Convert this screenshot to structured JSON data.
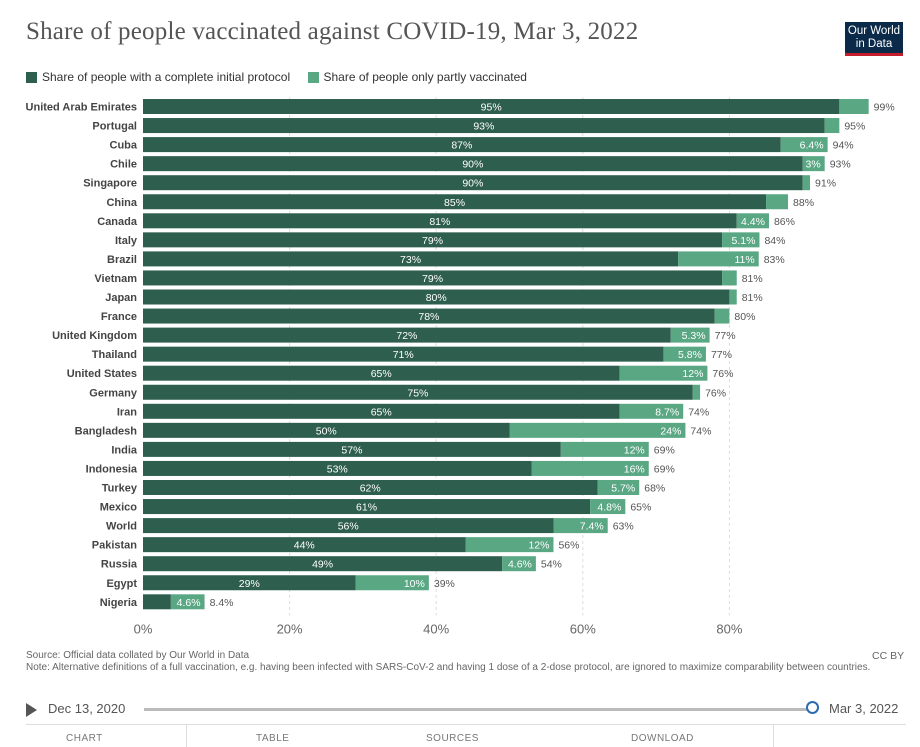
{
  "title": "Share of people vaccinated against COVID-19, Mar 3, 2022",
  "logo": {
    "line1": "Our World",
    "line2": "in Data"
  },
  "colors": {
    "complete": "#2e5e4e",
    "partial": "#5aa784"
  },
  "chart_data": {
    "type": "bar",
    "orientation": "horizontal",
    "stacked": true,
    "title": "Share of people vaccinated against COVID-19, Mar 3, 2022",
    "categories": [
      "United Arab Emirates",
      "Portugal",
      "Cuba",
      "Chile",
      "Singapore",
      "China",
      "Canada",
      "Italy",
      "Brazil",
      "Vietnam",
      "Japan",
      "France",
      "United Kingdom",
      "Thailand",
      "United States",
      "Germany",
      "Iran",
      "Bangladesh",
      "India",
      "Indonesia",
      "Turkey",
      "Mexico",
      "World",
      "Pakistan",
      "Russia",
      "Egypt",
      "Nigeria"
    ],
    "series": [
      {
        "name": "Share of people with a complete initial protocol",
        "values": [
          95,
          93,
          87,
          90,
          90,
          85,
          81,
          79,
          73,
          79,
          80,
          78,
          72,
          71,
          65,
          75,
          65,
          50,
          57,
          53,
          62,
          61,
          56,
          44,
          49,
          29,
          3.8
        ],
        "labels": [
          "95%",
          "93%",
          "87%",
          "90%",
          "90%",
          "85%",
          "81%",
          "79%",
          "73%",
          "79%",
          "80%",
          "78%",
          "72%",
          "71%",
          "65%",
          "75%",
          "65%",
          "50%",
          "57%",
          "53%",
          "62%",
          "61%",
          "56%",
          "44%",
          "49%",
          "29%",
          ""
        ]
      },
      {
        "name": "Share of people only partly vaccinated",
        "values": [
          4,
          2,
          6.4,
          3,
          1,
          3,
          4.4,
          5.1,
          11,
          2,
          1,
          2,
          5.3,
          5.8,
          12,
          1,
          8.7,
          24,
          12,
          16,
          5.7,
          4.8,
          7.4,
          12,
          4.6,
          10,
          4.6
        ],
        "labels": [
          "",
          "",
          "6.4%",
          "3%",
          "",
          "",
          "4.4%",
          "5.1%",
          "11%",
          "",
          "",
          "",
          "5.3%",
          "5.8%",
          "12%",
          "",
          "8.7%",
          "24%",
          "12%",
          "16%",
          "5.7%",
          "4.8%",
          "7.4%",
          "12%",
          "4.6%",
          "10%",
          "4.6%"
        ]
      }
    ],
    "totals": [
      "99%",
      "95%",
      "94%",
      "93%",
      "91%",
      "88%",
      "86%",
      "84%",
      "83%",
      "81%",
      "81%",
      "80%",
      "77%",
      "77%",
      "76%",
      "76%",
      "74%",
      "74%",
      "69%",
      "69%",
      "68%",
      "65%",
      "63%",
      "56%",
      "54%",
      "39%",
      "8.4%"
    ],
    "xlim": [
      0,
      100
    ],
    "xticks": [
      0,
      20,
      40,
      60,
      80
    ],
    "xtick_labels": [
      "0%",
      "20%",
      "40%",
      "60%",
      "80%"
    ],
    "grid": "vertical-dashed",
    "legend": "top-left"
  },
  "footer": {
    "source": "Source: Official data collated by Our World in Data",
    "note": "Note: Alternative definitions of a full vaccination, e.g. having been infected with SARS-CoV-2 and having 1 dose of a 2-dose protocol, are ignored to maximize comparability between countries.",
    "license": "CC BY"
  },
  "timeline": {
    "start": "Dec 13, 2020",
    "end": "Mar 3, 2022"
  },
  "tabs": [
    "CHART",
    "TABLE",
    "SOURCES",
    "DOWNLOAD"
  ]
}
